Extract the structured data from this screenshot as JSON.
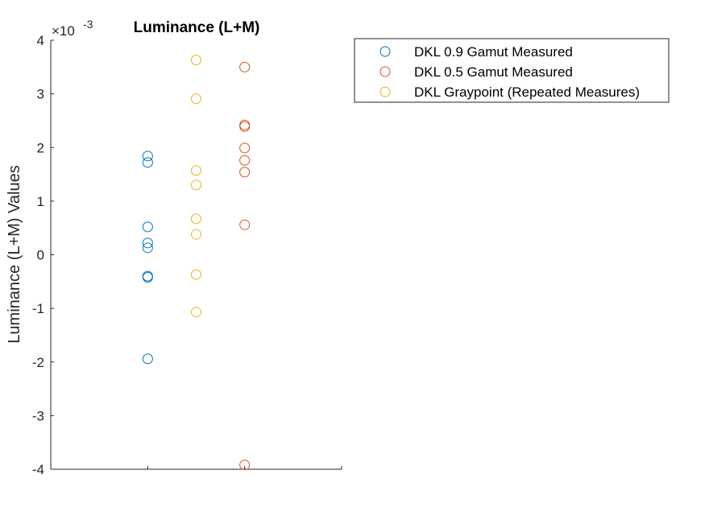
{
  "chart_data": {
    "type": "scatter",
    "title": "Luminance (L+M)",
    "ylabel": "Luminance (L+M) Values",
    "xlabel": "",
    "ylim": [
      -4,
      4
    ],
    "xlim": [
      0,
      6
    ],
    "y_exponent_label": "×10",
    "y_exponent_power": "-3",
    "y_ticks": [
      -4,
      -3,
      -2,
      -1,
      0,
      1,
      2,
      3,
      4
    ],
    "y_tick_labels": [
      "-4",
      "-3",
      "-2",
      "-1",
      "0",
      "1",
      "2",
      "3",
      "4"
    ],
    "x_ticks": [
      2,
      4
    ],
    "grid": false,
    "legend_position": "outside-top-right",
    "series": [
      {
        "name": "DKL 0.9 Gamut Measured",
        "color": "#0072BD",
        "marker": "circle-open",
        "x": [
          2,
          2,
          2,
          2,
          2,
          2,
          2,
          2
        ],
        "y": [
          1.84,
          1.72,
          0.52,
          0.22,
          0.13,
          -0.4,
          -0.42,
          -1.94
        ]
      },
      {
        "name": "DKL 0.5 Gamut Measured",
        "color": "#D95319",
        "marker": "circle-open",
        "x": [
          4,
          4,
          4,
          4,
          4,
          4,
          4,
          4
        ],
        "y": [
          3.5,
          2.42,
          2.39,
          1.99,
          1.76,
          1.54,
          0.56,
          -3.92
        ]
      },
      {
        "name": "DKL Graypoint (Repeated Measures)",
        "color": "#EDB120",
        "marker": "circle-open",
        "x": [
          3,
          3,
          3,
          3,
          3,
          3,
          3,
          3
        ],
        "y": [
          3.63,
          2.91,
          1.57,
          1.3,
          0.67,
          0.38,
          -0.37,
          -1.07
        ]
      }
    ]
  }
}
